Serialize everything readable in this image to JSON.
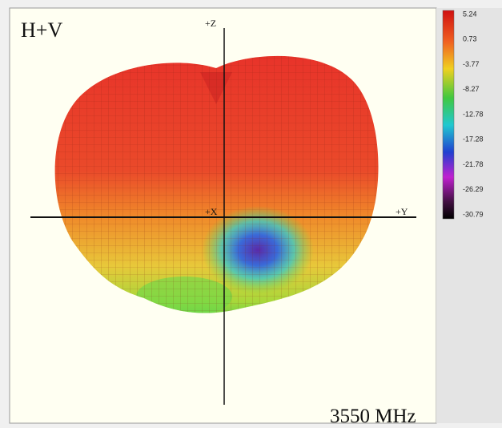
{
  "title": "H+V",
  "axes": {
    "z": "+Z",
    "x": "+X",
    "y": "+Y"
  },
  "frequency": "3550 MHz",
  "colorbar": {
    "labels": [
      "5.24",
      "0.73",
      "-3.77",
      "-8.27",
      "-12.78",
      "-17.28",
      "-21.78",
      "-26.29",
      "-30.79"
    ]
  }
}
